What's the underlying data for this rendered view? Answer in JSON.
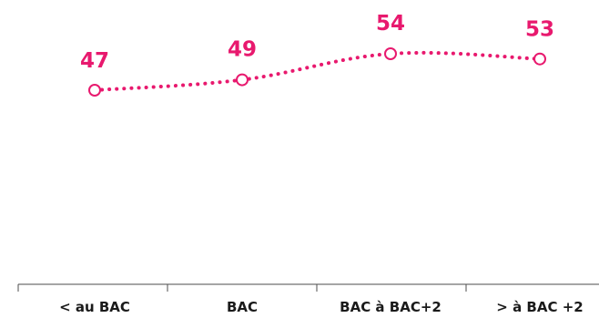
{
  "chart_data": {
    "type": "line",
    "categories": [
      "< au BAC",
      "BAC",
      "BAC à BAC+2",
      "> à BAC +2"
    ],
    "series": [
      {
        "values": [
          47,
          49,
          54,
          53
        ]
      }
    ],
    "title": "",
    "xlabel": "",
    "ylabel": "",
    "ylim": [
      0,
      70
    ],
    "grid": false,
    "legend": "none",
    "line_style": "dotted",
    "smooth": true,
    "marker": "hollow-circle"
  },
  "colors": {
    "series": "#e8196e",
    "axis": "#4d4d4d",
    "text": "#1a1a1a"
  }
}
